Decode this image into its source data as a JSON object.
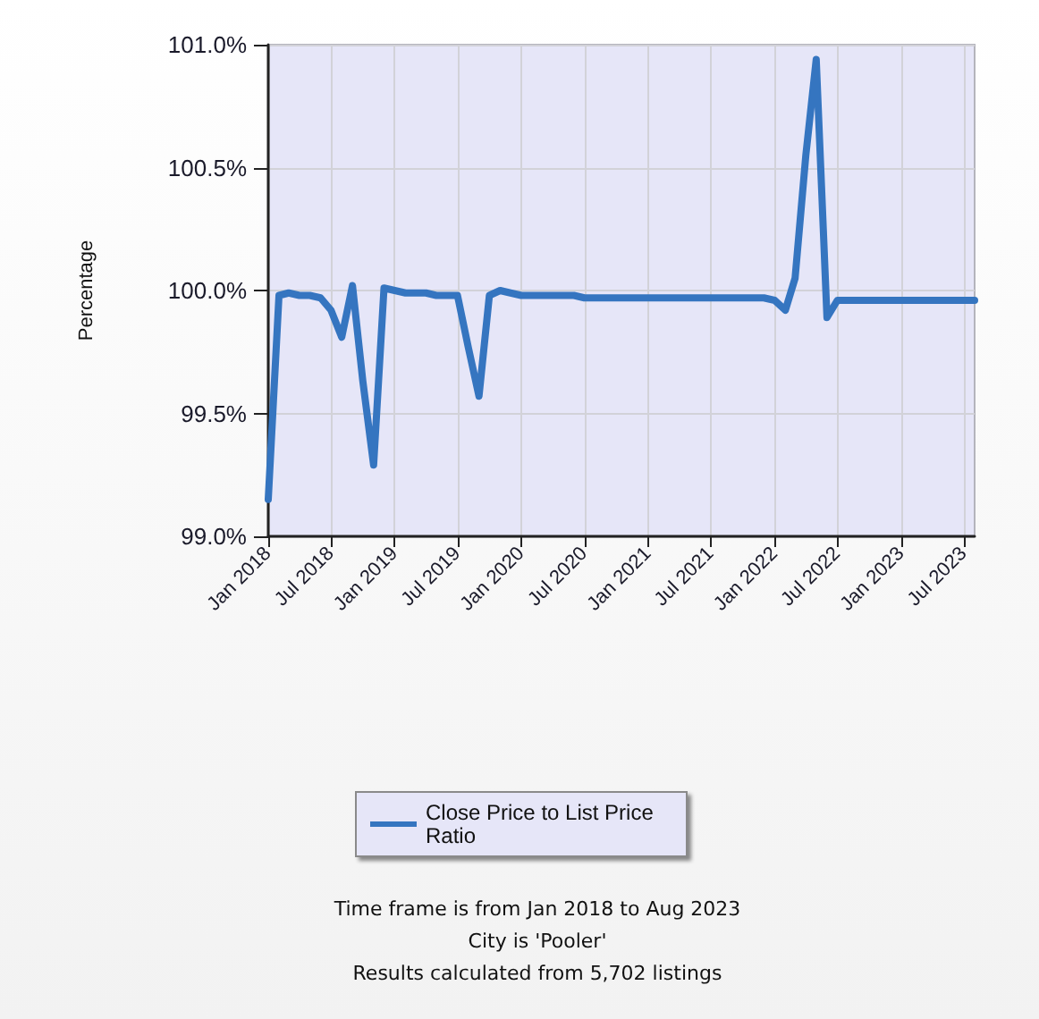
{
  "chart_data": {
    "type": "line",
    "ylabel": "Percentage",
    "x": [
      "2018-01",
      "2018-02",
      "2018-03",
      "2018-04",
      "2018-05",
      "2018-06",
      "2018-07",
      "2018-08",
      "2018-09",
      "2018-10",
      "2018-11",
      "2018-12",
      "2019-01",
      "2019-02",
      "2019-03",
      "2019-04",
      "2019-05",
      "2019-06",
      "2019-07",
      "2019-08",
      "2019-09",
      "2019-10",
      "2019-11",
      "2019-12",
      "2020-01",
      "2020-02",
      "2020-03",
      "2020-04",
      "2020-05",
      "2020-06",
      "2020-07",
      "2020-08",
      "2020-09",
      "2020-10",
      "2020-11",
      "2020-12",
      "2021-01",
      "2021-02",
      "2021-03",
      "2021-04",
      "2021-05",
      "2021-06",
      "2021-07",
      "2021-08",
      "2021-09",
      "2021-10",
      "2021-11",
      "2021-12",
      "2022-01",
      "2022-02",
      "2022-03",
      "2022-04",
      "2022-05",
      "2022-06",
      "2022-07",
      "2022-08",
      "2022-09",
      "2022-10",
      "2022-11",
      "2022-12",
      "2023-01",
      "2023-02",
      "2023-03",
      "2023-04",
      "2023-05",
      "2023-06",
      "2023-07",
      "2023-08"
    ],
    "series": [
      {
        "name": "Close Price to List Price Ratio",
        "color": "#3575c0",
        "values": [
          99.15,
          99.98,
          99.99,
          99.98,
          99.98,
          99.97,
          99.92,
          99.81,
          100.02,
          99.63,
          99.29,
          100.01,
          100.0,
          99.99,
          99.99,
          99.99,
          99.98,
          99.98,
          99.98,
          99.77,
          99.57,
          99.98,
          100.0,
          99.99,
          99.98,
          99.98,
          99.98,
          99.98,
          99.98,
          99.98,
          99.97,
          99.97,
          99.97,
          99.97,
          99.97,
          99.97,
          99.97,
          99.97,
          99.97,
          99.97,
          99.97,
          99.97,
          99.97,
          99.97,
          99.97,
          99.97,
          99.97,
          99.97,
          99.96,
          99.92,
          100.05,
          100.55,
          100.94,
          99.89,
          99.96,
          99.96,
          99.96,
          99.96,
          99.96,
          99.96,
          99.96,
          99.96,
          99.96,
          99.96,
          99.96,
          99.96,
          99.96,
          99.96
        ]
      }
    ],
    "xlim": [
      "2018-01",
      "2023-08"
    ],
    "xticks": [
      {
        "value": "2018-01",
        "label": "Jan 2018"
      },
      {
        "value": "2018-07",
        "label": "Jul 2018"
      },
      {
        "value": "2019-01",
        "label": "Jan 2019"
      },
      {
        "value": "2019-07",
        "label": "Jul 2019"
      },
      {
        "value": "2020-01",
        "label": "Jan 2020"
      },
      {
        "value": "2020-07",
        "label": "Jul 2020"
      },
      {
        "value": "2021-01",
        "label": "Jan 2021"
      },
      {
        "value": "2021-07",
        "label": "Jul 2021"
      },
      {
        "value": "2022-01",
        "label": "Jan 2022"
      },
      {
        "value": "2022-07",
        "label": "Jul 2022"
      },
      {
        "value": "2023-01",
        "label": "Jan 2023"
      },
      {
        "value": "2023-07",
        "label": "Jul 2023"
      }
    ],
    "ylim": [
      99,
      101
    ],
    "yticks": [
      {
        "value": 99,
        "label": "99.0%"
      },
      {
        "value": 99.5,
        "label": "99.5%"
      },
      {
        "value": 100,
        "label": "100.0%"
      },
      {
        "value": 100.5,
        "label": "100.5%"
      },
      {
        "value": 101,
        "label": "101.0%"
      }
    ],
    "grid": true,
    "legend": "bottom",
    "annotations": [
      "Time frame is from Jan 2018 to Aug 2023",
      "City is 'Pooler'",
      "Results calculated from 5,702 listings"
    ]
  }
}
